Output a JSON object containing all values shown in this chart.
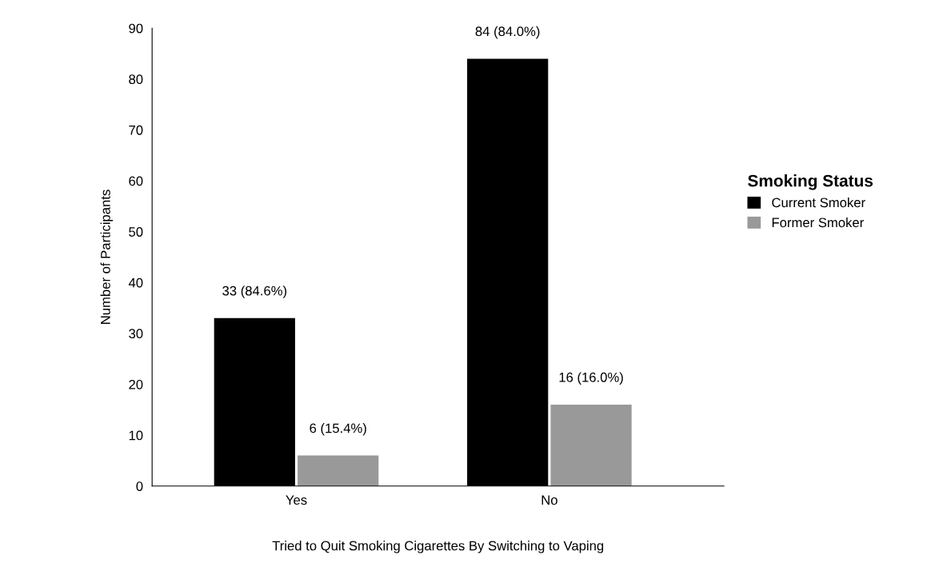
{
  "chart_data": {
    "type": "bar",
    "xlabel": "Tried to Quit Smoking Cigarettes By Switching to Vaping",
    "ylabel": "Number of Participants",
    "legend_title": "Smoking Status",
    "legend": "right",
    "grid": false,
    "categories": [
      "Yes",
      "No"
    ],
    "series": [
      {
        "name": "Current Smoker",
        "color": "#000000",
        "values": [
          33,
          84
        ],
        "value_labels": [
          "33 (84.6%)",
          "84 (84.0%)"
        ]
      },
      {
        "name": "Former Smoker",
        "color": "#999999",
        "values": [
          6,
          16
        ],
        "value_labels": [
          "6 (15.4%)",
          "16 (16.0%)"
        ]
      }
    ],
    "ylim": [
      0,
      90
    ],
    "yticks": [
      0,
      10,
      20,
      30,
      40,
      50,
      60,
      70,
      80,
      90
    ]
  }
}
